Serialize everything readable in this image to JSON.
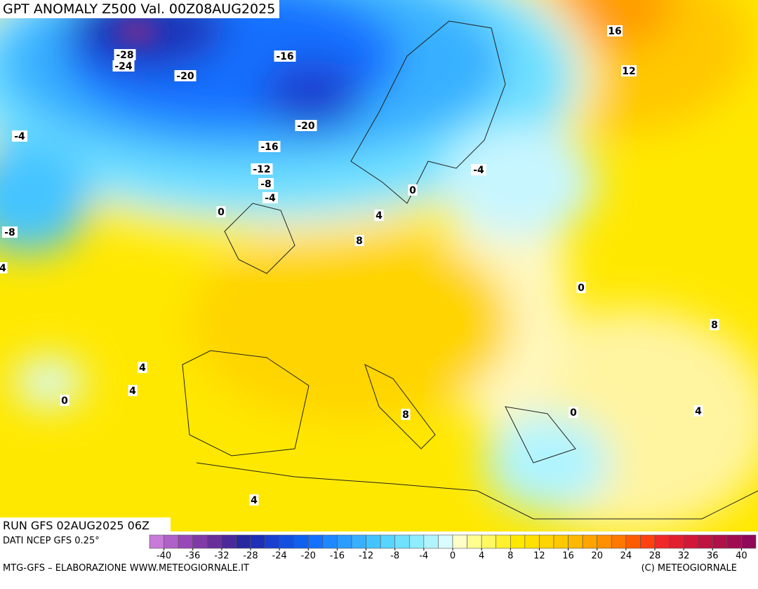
{
  "header": {
    "title": "GPT ANOMALY Z500 Val. 00Z08AUG2025",
    "run": "RUN GFS 02AUG2025 06Z",
    "source": "DATI NCEP GFS 0.25°"
  },
  "footer": {
    "left": "MTG-GFS – ELABORAZIONE WWW.METEOGIORNALE.IT",
    "right": "(C) METEOGIORNALE"
  },
  "map": {
    "contour_labels": [
      -28,
      -24,
      -20,
      -16,
      16,
      12,
      -20,
      -4,
      -16,
      -12,
      -8,
      -4,
      0,
      -4,
      0,
      4,
      -8,
      8,
      4,
      0,
      8,
      4,
      4,
      0,
      8,
      0,
      4,
      4
    ]
  },
  "colorbar": {
    "lim": [
      -42,
      42
    ],
    "ticks": [
      -40,
      -36,
      -32,
      -28,
      -24,
      -20,
      -16,
      -12,
      -8,
      -4,
      0,
      4,
      8,
      12,
      16,
      20,
      24,
      28,
      32,
      36,
      40
    ],
    "colors": [
      "#c87ad8",
      "#b060c8",
      "#9848b8",
      "#803aa8",
      "#68309a",
      "#4a2a9a",
      "#2828a0",
      "#1e30b8",
      "#1a40d0",
      "#1450e0",
      "#1060f0",
      "#1470ff",
      "#2088ff",
      "#2c9cff",
      "#38b0ff",
      "#44c4ff",
      "#58d4ff",
      "#70e0ff",
      "#90ecff",
      "#b0f4ff",
      "#d8fcff",
      "#ffffc8",
      "#ffff90",
      "#fff860",
      "#fff030",
      "#ffe800",
      "#ffe000",
      "#ffd400",
      "#ffc800",
      "#ffb800",
      "#ffa400",
      "#ff9000",
      "#ff7800",
      "#ff5c00",
      "#ff4010",
      "#f02828",
      "#e02030",
      "#d01838",
      "#c01440",
      "#b01048",
      "#a00c50",
      "#900858"
    ]
  }
}
